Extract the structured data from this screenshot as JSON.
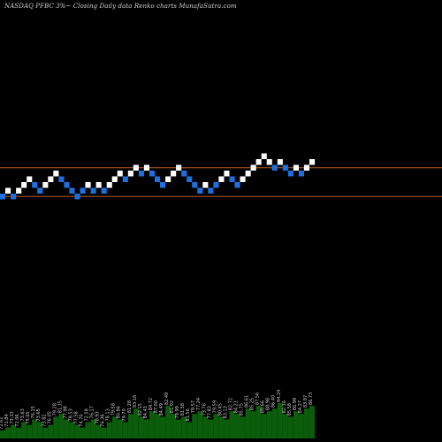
{
  "header": {
    "title": "NASDAQ PFBC 3%~  Closing Daily data  Renko  charts MunafaSutra.com"
  },
  "colors": {
    "background": "#000000",
    "brick_up": "#ffffff",
    "brick_down": "#1e6fe0",
    "level_line": "#b85a1a",
    "volume_bar": "#0b5c0b",
    "volume_label": "#c8c8c8"
  },
  "chart_data": {
    "type": "renko",
    "title": "NASDAQ PFBC 3%~  Closing Daily data  Renko  charts MunafaSutra.com",
    "brick_size_label": "3%",
    "levels": [
      1,
      4
    ],
    "bricks": [
      {
        "level": 0,
        "dir": "down"
      },
      {
        "level": 1,
        "dir": "up"
      },
      {
        "level": 0,
        "dir": "down"
      },
      {
        "level": 1,
        "dir": "up"
      },
      {
        "level": 2,
        "dir": "up"
      },
      {
        "level": 3,
        "dir": "up"
      },
      {
        "level": 2,
        "dir": "down"
      },
      {
        "level": 1,
        "dir": "down"
      },
      {
        "level": 2,
        "dir": "up"
      },
      {
        "level": 3,
        "dir": "up"
      },
      {
        "level": 4,
        "dir": "up"
      },
      {
        "level": 3,
        "dir": "down"
      },
      {
        "level": 2,
        "dir": "down"
      },
      {
        "level": 1,
        "dir": "down"
      },
      {
        "level": 0,
        "dir": "down"
      },
      {
        "level": 1,
        "dir": "down"
      },
      {
        "level": 2,
        "dir": "up"
      },
      {
        "level": 1,
        "dir": "down"
      },
      {
        "level": 2,
        "dir": "up"
      },
      {
        "level": 1,
        "dir": "down"
      },
      {
        "level": 2,
        "dir": "up"
      },
      {
        "level": 3,
        "dir": "up"
      },
      {
        "level": 4,
        "dir": "up"
      },
      {
        "level": 3,
        "dir": "down"
      },
      {
        "level": 4,
        "dir": "up"
      },
      {
        "level": 5,
        "dir": "up"
      },
      {
        "level": 4,
        "dir": "down"
      },
      {
        "level": 5,
        "dir": "up"
      },
      {
        "level": 4,
        "dir": "down"
      },
      {
        "level": 3,
        "dir": "down"
      },
      {
        "level": 2,
        "dir": "down"
      },
      {
        "level": 3,
        "dir": "up"
      },
      {
        "level": 4,
        "dir": "up"
      },
      {
        "level": 5,
        "dir": "up"
      },
      {
        "level": 4,
        "dir": "down"
      },
      {
        "level": 3,
        "dir": "down"
      },
      {
        "level": 2,
        "dir": "down"
      },
      {
        "level": 1,
        "dir": "down"
      },
      {
        "level": 2,
        "dir": "up"
      },
      {
        "level": 1,
        "dir": "down"
      },
      {
        "level": 2,
        "dir": "down"
      },
      {
        "level": 3,
        "dir": "up"
      },
      {
        "level": 4,
        "dir": "up"
      },
      {
        "level": 3,
        "dir": "down"
      },
      {
        "level": 2,
        "dir": "down"
      },
      {
        "level": 3,
        "dir": "up"
      },
      {
        "level": 4,
        "dir": "up"
      },
      {
        "level": 5,
        "dir": "up"
      },
      {
        "level": 6,
        "dir": "up"
      },
      {
        "level": 7,
        "dir": "up"
      },
      {
        "level": 6,
        "dir": "up"
      },
      {
        "level": 5,
        "dir": "down"
      },
      {
        "level": 6,
        "dir": "up"
      },
      {
        "level": 5,
        "dir": "down"
      },
      {
        "level": 4,
        "dir": "down"
      },
      {
        "level": 5,
        "dir": "up"
      },
      {
        "level": 4,
        "dir": "down"
      },
      {
        "level": 5,
        "dir": "up"
      },
      {
        "level": 6,
        "dir": "up"
      }
    ],
    "volume": [
      3,
      4,
      5,
      4,
      6,
      5,
      7,
      6,
      4,
      5,
      8,
      9,
      7,
      6,
      5,
      4,
      6,
      7,
      5,
      4,
      6,
      8,
      7,
      6,
      9,
      11,
      8,
      7,
      10,
      9,
      8,
      12,
      9,
      7,
      8,
      6,
      9,
      10,
      8,
      7,
      9,
      8,
      7,
      10,
      9,
      8,
      11,
      10,
      12,
      9,
      10,
      11,
      13,
      9,
      8,
      10,
      9,
      11,
      12
    ],
    "volume_labels": [
      "72.61",
      "71.84",
      "73.33",
      "71.06",
      "73.63",
      "75.65",
      "76.15",
      "73.65",
      "73.82",
      "76.05",
      "79.28",
      "81.15",
      "77.98",
      "78.53",
      "77.58",
      "74.70",
      "72.58",
      "76.17",
      "78.93",
      "76.36",
      "78.13",
      "79.58",
      "80.86",
      "79.70",
      "81.28",
      "83.16",
      "82.15",
      "84.43",
      "84.72",
      "87.00",
      "84.49",
      "82.49",
      "81.02",
      "79.99",
      "81.58",
      "81.56",
      "79.57",
      "77.24",
      "73.76",
      "77.83",
      "79.59",
      "80.45",
      "83.13",
      "82.72",
      "84.21",
      "85.75",
      "86.61",
      "85.25",
      "87.56",
      "89.66",
      "88.98",
      "86.40",
      "84.24",
      "82.16",
      "85.58",
      "86.99",
      "84.27",
      "83.97",
      "86.73"
    ]
  }
}
